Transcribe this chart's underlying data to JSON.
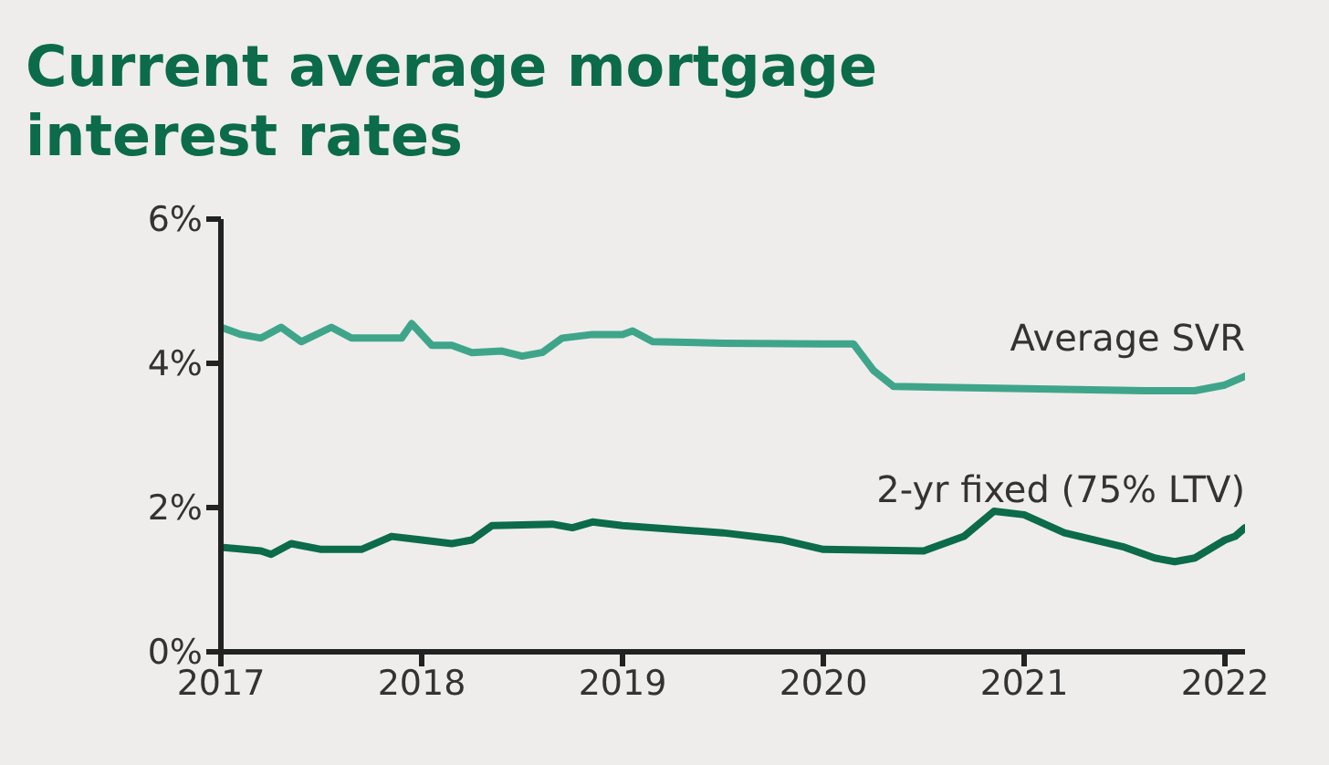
{
  "chart_data": {
    "type": "line",
    "title": "Current average mortgage interest rates",
    "xlim": [
      2017,
      2022.1
    ],
    "xticks": [
      2017,
      2018,
      2019,
      2020,
      2021,
      2022
    ],
    "ylim": [
      0,
      6
    ],
    "yticks": [
      {
        "value": 0,
        "label": "0%"
      },
      {
        "value": 2,
        "label": "2%"
      },
      {
        "value": 4,
        "label": "4%"
      },
      {
        "value": 6,
        "label": "6%"
      }
    ],
    "marker": "none",
    "series": [
      {
        "name": "Average SVR",
        "color": "#3fa58a",
        "x": [
          2017,
          2017.1,
          2017.2,
          2017.3,
          2017.4,
          2017.55,
          2017.65,
          2017.9,
          2017.95,
          2018.05,
          2018.15,
          2018.25,
          2018.4,
          2018.5,
          2018.6,
          2018.7,
          2018.85,
          2019,
          2019.05,
          2019.15,
          2019.5,
          2020,
          2020.15,
          2020.25,
          2020.35,
          2021,
          2021.6,
          2021.85,
          2022,
          2022.1
        ],
        "values": [
          4.5,
          4.4,
          4.35,
          4.5,
          4.3,
          4.5,
          4.35,
          4.35,
          4.55,
          4.25,
          4.25,
          4.15,
          4.17,
          4.1,
          4.15,
          4.35,
          4.4,
          4.4,
          4.45,
          4.3,
          4.28,
          4.27,
          4.27,
          3.9,
          3.68,
          3.65,
          3.62,
          3.62,
          3.7,
          3.82
        ]
      },
      {
        "name": "2-yr fixed (75% LTV)",
        "color": "#0b6b4b",
        "x": [
          2017,
          2017.2,
          2017.25,
          2017.35,
          2017.5,
          2017.7,
          2017.85,
          2018,
          2018.15,
          2018.25,
          2018.35,
          2018.65,
          2018.75,
          2018.85,
          2019,
          2019.5,
          2019.8,
          2020,
          2020.5,
          2020.7,
          2020.85,
          2021,
          2021.2,
          2021.5,
          2021.65,
          2021.75,
          2021.85,
          2022,
          2022.05,
          2022.1
        ],
        "values": [
          1.45,
          1.4,
          1.35,
          1.5,
          1.42,
          1.42,
          1.6,
          1.55,
          1.5,
          1.55,
          1.75,
          1.77,
          1.72,
          1.8,
          1.75,
          1.65,
          1.55,
          1.42,
          1.4,
          1.6,
          1.95,
          1.9,
          1.65,
          1.45,
          1.3,
          1.25,
          1.3,
          1.55,
          1.6,
          1.72
        ]
      }
    ]
  }
}
